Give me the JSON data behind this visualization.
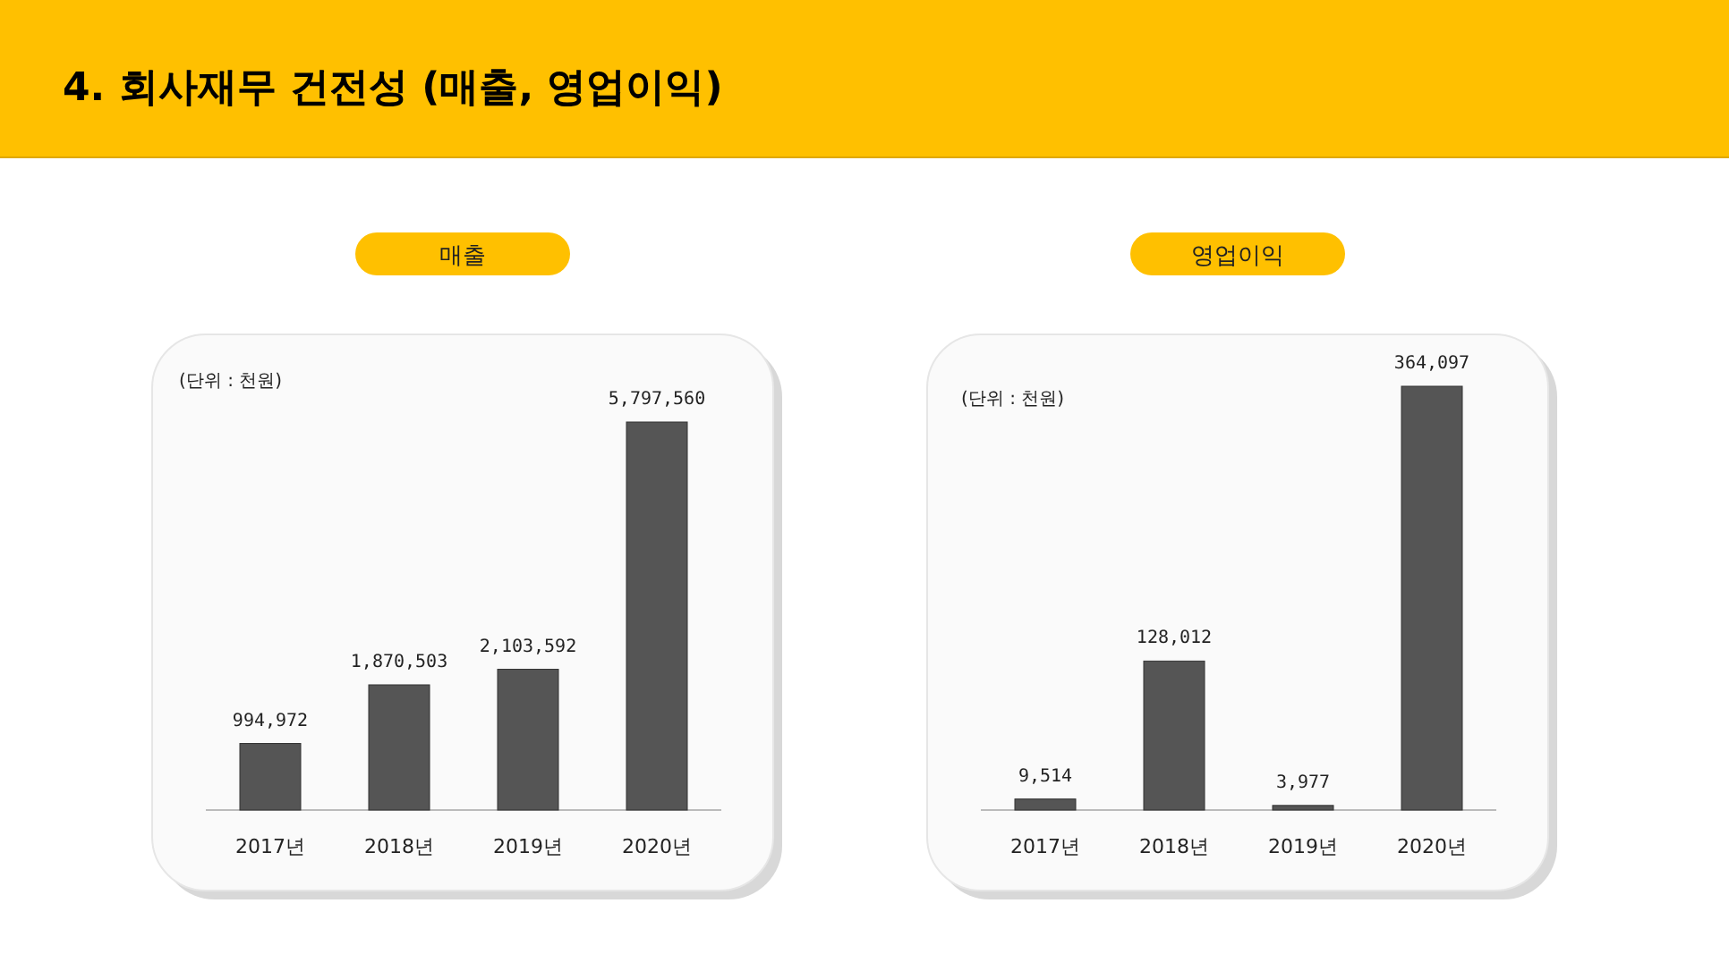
{
  "chart_data": [
    {
      "type": "bar",
      "title": "매출",
      "categories": [
        "2017년",
        "2018년",
        "2019년",
        "2020년"
      ],
      "values": [
        994972,
        1870503,
        2103592,
        5797560
      ],
      "value_labels": [
        "994,972",
        "1,870,503",
        "2,103,592",
        "5,797,560"
      ],
      "color": "#555555",
      "annotations": [
        "4. 회사재무 건전성 (매출, 영업이익)",
        "(단위 : 천원)"
      ]
    },
    {
      "type": "bar",
      "title": "영업이익",
      "categories": [
        "2017년",
        "2018년",
        "2019년",
        "2020년"
      ],
      "values": [
        9514,
        128012,
        3977,
        364097
      ],
      "value_labels": [
        "9,514",
        "128,012",
        "3,977",
        "364,097"
      ],
      "color": "#555555",
      "annotations": [
        "(단위 : 천원)"
      ]
    }
  ]
}
